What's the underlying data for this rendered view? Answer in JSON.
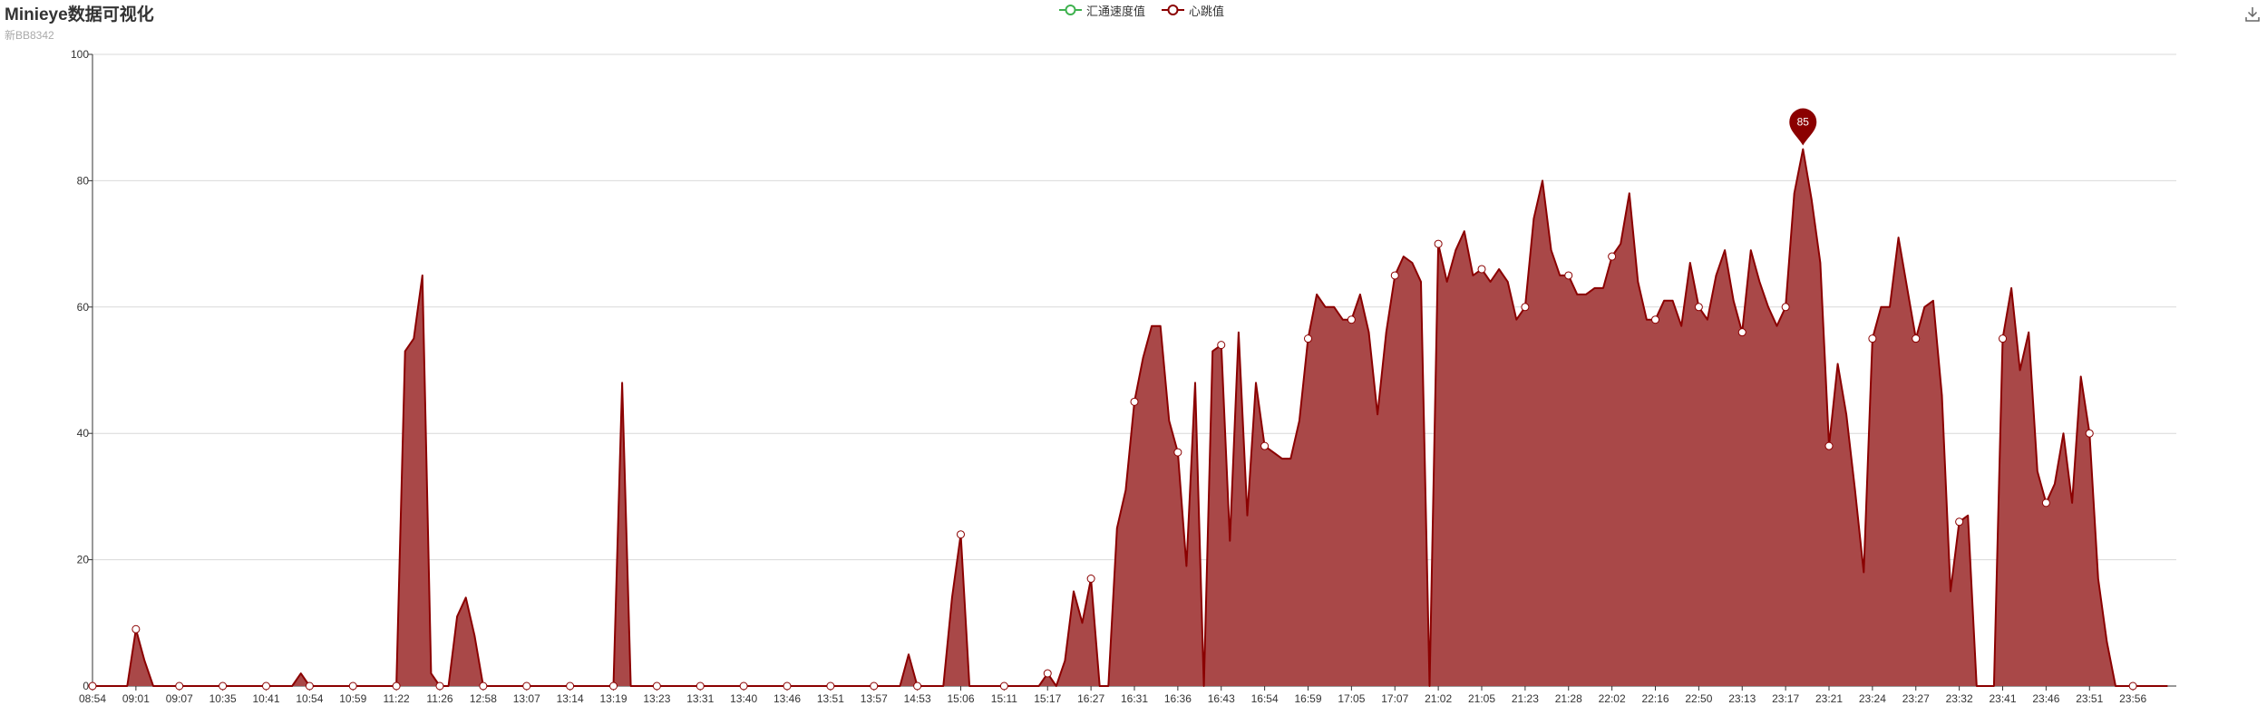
{
  "header": {
    "title": "Minieye数据可视化",
    "subtitle": "新BB8342"
  },
  "toolbar": {
    "download_icon": "download-icon"
  },
  "legend": {
    "items": [
      {
        "label": "汇通速度值",
        "color": "#3fb24f"
      },
      {
        "label": "心跳值",
        "color": "#8b0000"
      }
    ]
  },
  "colors": {
    "heartbeat_line": "#8b0000",
    "heartbeat_area": "#a94848",
    "grid": "#d9d9d9",
    "axis": "#333333"
  },
  "chart_data": {
    "type": "area",
    "title": "",
    "xlabel": "",
    "ylabel": "",
    "ylim": [
      0,
      100
    ],
    "yticks": [
      0,
      20,
      40,
      60,
      80,
      100
    ],
    "grid": true,
    "legend_position": "top-center",
    "x_tick_labels": [
      "08:54",
      "09:01",
      "09:07",
      "10:35",
      "10:41",
      "10:54",
      "10:59",
      "11:22",
      "11:26",
      "12:58",
      "13:07",
      "13:14",
      "13:19",
      "13:23",
      "13:31",
      "13:40",
      "13:46",
      "13:51",
      "13:57",
      "14:53",
      "15:06",
      "15:11",
      "15:17",
      "16:27",
      "16:31",
      "16:36",
      "16:43",
      "16:54",
      "16:59",
      "17:05",
      "17:07",
      "21:02",
      "21:05",
      "21:23",
      "21:28",
      "22:02",
      "22:16",
      "22:50",
      "23:13",
      "23:17",
      "23:21",
      "23:24",
      "23:27",
      "23:32",
      "23:41",
      "23:46",
      "23:51",
      "23:56"
    ],
    "series": [
      {
        "name": "汇通速度值",
        "values": []
      },
      {
        "name": "心跳值",
        "values": [
          0,
          0,
          0,
          0,
          0,
          9,
          4,
          0,
          0,
          0,
          0,
          0,
          0,
          0,
          0,
          0,
          0,
          0,
          0,
          0,
          0,
          0,
          0,
          0,
          2,
          0,
          0,
          0,
          0,
          0,
          0,
          0,
          0,
          0,
          0,
          0,
          53,
          55,
          65,
          2,
          0,
          0,
          11,
          14,
          8,
          0,
          0,
          0,
          0,
          0,
          0,
          0,
          0,
          0,
          0,
          0,
          0,
          0,
          0,
          0,
          0,
          48,
          0,
          0,
          0,
          0,
          0,
          0,
          0,
          0,
          0,
          0,
          0,
          0,
          0,
          0,
          0,
          0,
          0,
          0,
          0,
          0,
          0,
          0,
          0,
          0,
          0,
          0,
          0,
          0,
          0,
          0,
          0,
          0,
          5,
          0,
          0,
          0,
          0,
          14,
          24,
          0,
          0,
          0,
          0,
          0,
          0,
          0,
          0,
          0,
          2,
          0,
          4,
          15,
          10,
          17,
          0,
          0,
          25,
          31,
          45,
          52,
          57,
          57,
          42,
          37,
          19,
          48,
          0,
          53,
          54,
          23,
          56,
          27,
          48,
          38,
          37,
          36,
          36,
          42,
          55,
          62,
          60,
          60,
          58,
          58,
          62,
          56,
          43,
          56,
          65,
          68,
          67,
          64,
          0,
          70,
          64,
          69,
          72,
          65,
          66,
          64,
          66,
          64,
          58,
          60,
          74,
          80,
          69,
          65,
          65,
          62,
          62,
          63,
          63,
          68,
          70,
          78,
          64,
          58,
          58,
          61,
          61,
          57,
          67,
          60,
          58,
          65,
          69,
          61,
          56,
          69,
          64,
          60,
          57,
          60,
          78,
          85,
          77,
          67,
          38,
          51,
          43,
          31,
          18,
          55,
          60,
          60,
          71,
          63,
          55,
          60,
          61,
          46,
          15,
          26,
          27,
          0,
          0,
          0,
          55,
          63,
          50,
          56,
          34,
          29,
          32,
          40,
          29,
          49,
          40,
          17,
          7,
          0,
          0,
          0,
          0,
          0,
          0,
          0
        ]
      }
    ],
    "annotations": [
      {
        "type": "max-pin",
        "series": "心跳值",
        "value": 85
      }
    ]
  }
}
